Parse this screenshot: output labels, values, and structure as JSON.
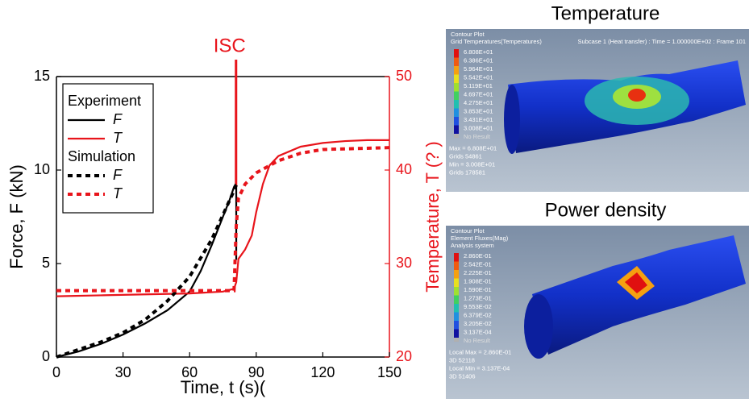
{
  "chart_data": {
    "type": "line",
    "xlabel": "Time, t (s)(",
    "ylabel": "Force, F (kN)",
    "y2label": "Temperature, T (? )",
    "xlim": [
      0,
      150
    ],
    "xticks": [
      0,
      30,
      60,
      90,
      120,
      150
    ],
    "ylim": [
      0,
      15
    ],
    "yticks": [
      0,
      5,
      10,
      15
    ],
    "y2lim": [
      20,
      50
    ],
    "y2ticks": [
      20,
      30,
      40,
      50
    ],
    "y2color": "#e8141b",
    "legend_titles": [
      "Experiment",
      "Simulation"
    ],
    "annotation": {
      "text": "ISC",
      "x": 78
    },
    "series": [
      {
        "name": "F",
        "color": "#000000",
        "dash": "solid",
        "x": [
          0,
          10,
          20,
          30,
          40,
          50,
          60,
          65,
          70,
          75,
          78,
          80,
          80.5,
          81,
          81
        ],
        "values": [
          0,
          0.3,
          0.7,
          1.2,
          1.8,
          2.5,
          3.5,
          4.6,
          6.0,
          7.5,
          8.4,
          9.1,
          9.2,
          9.1,
          5.2
        ]
      },
      {
        "name": "T",
        "color": "#e8141b",
        "dash": "solid",
        "axis": "y2",
        "x": [
          0,
          20,
          40,
          60,
          75,
          80,
          81,
          82,
          85,
          88,
          90,
          93,
          96,
          100,
          110,
          120,
          130,
          140,
          150
        ],
        "values": [
          26.5,
          26.6,
          26.7,
          26.8,
          27,
          27.3,
          28,
          30.5,
          31.5,
          33,
          35.5,
          38.5,
          40.5,
          41.5,
          42.5,
          42.9,
          43.1,
          43.2,
          43.2
        ]
      },
      {
        "name": "F",
        "color": "#000000",
        "dash": "dotted",
        "x": [
          0,
          10,
          20,
          30,
          40,
          50,
          60,
          70,
          75,
          80,
          81
        ],
        "values": [
          0,
          0.4,
          0.8,
          1.3,
          2.0,
          3.0,
          4.3,
          6.3,
          7.6,
          8.9,
          9.2
        ]
      },
      {
        "name": "T",
        "color": "#e8141b",
        "dash": "dotted",
        "axis": "y2",
        "x": [
          0,
          20,
          40,
          60,
          75,
          80,
          81,
          82,
          85,
          90,
          100,
          110,
          120,
          150
        ],
        "values": [
          27.1,
          27.1,
          27.1,
          27.1,
          27.1,
          27.1,
          34,
          37,
          38.5,
          39.7,
          41,
          41.8,
          42.2,
          42.4
        ]
      }
    ]
  },
  "panels": [
    {
      "title": "Temperature",
      "header": [
        "Contour Plot",
        "Grid Temperatures(Temperatures)"
      ],
      "subcase": "Subcase 1 (Heat transfer) : Time = 1.000000E+02 : Frame 101",
      "legend": [
        "6.808E+01",
        "6.386E+01",
        "5.964E+01",
        "5.542E+01",
        "5.119E+01",
        "4.697E+01",
        "4.275E+01",
        "3.853E+01",
        "3.431E+01",
        "3.008E+01",
        "No Result"
      ],
      "footer": [
        "Max = 6.808E+01",
        "Grids 54861",
        "Min = 3.008E+01",
        "Grids 178581"
      ]
    },
    {
      "title": "Power density",
      "header": [
        "Contour Plot",
        "Element Fluxes(Mag)",
        "Analysis system"
      ],
      "legend": [
        "2.860E-01",
        "2.542E-01",
        "2.225E-01",
        "1.908E-01",
        "1.590E-01",
        "1.273E-01",
        "9.553E-02",
        "6.379E-02",
        "3.205E-02",
        "3.137E-04",
        "No Result"
      ],
      "footer": [
        "Local Max = 2.860E-01",
        "3D 52118",
        "Local Min = 3.137E-04",
        "3D 51406"
      ]
    }
  ]
}
